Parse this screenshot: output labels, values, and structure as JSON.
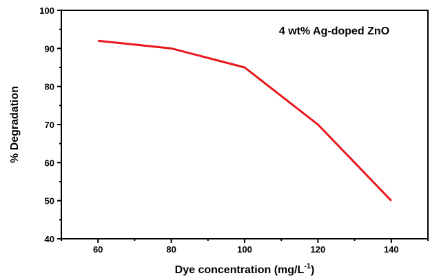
{
  "chart_data": {
    "type": "line",
    "x": [
      60,
      80,
      100,
      120,
      140
    ],
    "series": [
      {
        "name": "4 wt% Ag-doped ZnO",
        "values": [
          92,
          90,
          85,
          70,
          50
        ],
        "color": "#e8161b"
      }
    ],
    "title": "",
    "xlabel": "Dye concentration (mg/L",
    "xlabel_superscript": "-1",
    "xlabel_suffix": ")",
    "ylabel": "% Degradation",
    "xlim": [
      50,
      150
    ],
    "ylim": [
      40,
      100
    ],
    "xticks": [
      60,
      80,
      100,
      120,
      140
    ],
    "yticks": [
      40,
      50,
      60,
      70,
      80,
      90,
      100
    ],
    "grid": false,
    "legend_placement": "top-right"
  }
}
